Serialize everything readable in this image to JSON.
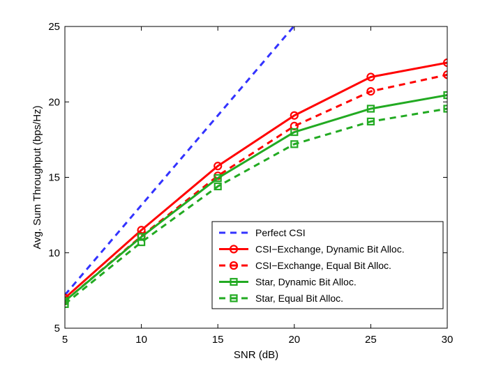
{
  "chart_data": {
    "type": "line",
    "title": "",
    "xlabel": "SNR (dB)",
    "ylabel": "Avg. Sum Throughput (bps/Hz)",
    "xlim": [
      5,
      30
    ],
    "ylim": [
      5,
      25
    ],
    "xticks": [
      5,
      10,
      15,
      20,
      25,
      30
    ],
    "yticks": [
      5,
      10,
      15,
      20,
      25
    ],
    "grid": false,
    "legend_position": "bottom-right",
    "series": [
      {
        "name": "Perfect CSI",
        "color": "#3333ff",
        "dash": true,
        "marker": "none",
        "x": [
          5,
          10,
          15,
          20
        ],
        "y": [
          7.2,
          13.15,
          19.1,
          25.05
        ]
      },
      {
        "name": "CSI−Exchange, Dynamic Bit Alloc.",
        "color": "#ff0000",
        "dash": false,
        "marker": "circle",
        "x": [
          5,
          10,
          15,
          20,
          25,
          30
        ],
        "y": [
          7.0,
          11.5,
          15.75,
          19.1,
          21.65,
          22.6
        ]
      },
      {
        "name": "CSI−Exchange, Equal Bit Alloc.",
        "color": "#ff0000",
        "dash": true,
        "marker": "circle",
        "x": [
          5,
          10,
          15,
          20,
          25,
          30
        ],
        "y": [
          6.8,
          11.1,
          15.1,
          18.4,
          20.7,
          21.8
        ]
      },
      {
        "name": "Star, Dynamic Bit Alloc.",
        "color": "#22aa22",
        "dash": false,
        "marker": "square",
        "x": [
          5,
          10,
          15,
          20,
          25,
          30
        ],
        "y": [
          6.8,
          11.05,
          14.95,
          18.0,
          19.55,
          20.45
        ]
      },
      {
        "name": "Star, Equal Bit Alloc.",
        "color": "#22aa22",
        "dash": true,
        "marker": "square",
        "x": [
          5,
          10,
          15,
          20,
          25,
          30
        ],
        "y": [
          6.6,
          10.7,
          14.4,
          17.2,
          18.7,
          19.55
        ]
      }
    ]
  }
}
